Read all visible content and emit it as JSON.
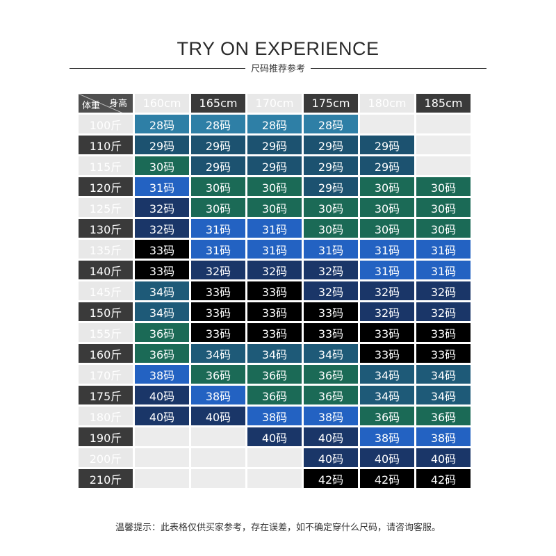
{
  "title": "TRY ON EXPERIENCE",
  "subtitle": "尺码推荐参考",
  "corner": {
    "height_label": "身高",
    "weight_label": "体重"
  },
  "heights": [
    "160cm",
    "165cm",
    "170cm",
    "175cm",
    "180cm",
    "185cm"
  ],
  "rows": [
    {
      "weight": "100斤",
      "sizes": [
        "28码",
        "28码",
        "28码",
        "28码",
        "",
        ""
      ]
    },
    {
      "weight": "110斤",
      "sizes": [
        "29码",
        "29码",
        "29码",
        "29码",
        "29码",
        ""
      ]
    },
    {
      "weight": "115斤",
      "sizes": [
        "30码",
        "29码",
        "29码",
        "29码",
        "29码",
        ""
      ]
    },
    {
      "weight": "120斤",
      "sizes": [
        "31码",
        "30码",
        "30码",
        "29码",
        "30码",
        "30码"
      ]
    },
    {
      "weight": "125斤",
      "sizes": [
        "32码",
        "30码",
        "30码",
        "30码",
        "30码",
        "30码"
      ]
    },
    {
      "weight": "130斤",
      "sizes": [
        "32码",
        "31码",
        "31码",
        "30码",
        "30码",
        "30码"
      ]
    },
    {
      "weight": "135斤",
      "sizes": [
        "33码",
        "31码",
        "31码",
        "31码",
        "31码",
        "31码"
      ]
    },
    {
      "weight": "140斤",
      "sizes": [
        "33码",
        "32码",
        "32码",
        "32码",
        "31码",
        "31码"
      ]
    },
    {
      "weight": "145斤",
      "sizes": [
        "34码",
        "33码",
        "33码",
        "32码",
        "32码",
        "32码"
      ]
    },
    {
      "weight": "150斤",
      "sizes": [
        "34码",
        "33码",
        "33码",
        "33码",
        "32码",
        "32码"
      ]
    },
    {
      "weight": "155斤",
      "sizes": [
        "36码",
        "33码",
        "33码",
        "33码",
        "33码",
        "33码"
      ]
    },
    {
      "weight": "160斤",
      "sizes": [
        "36码",
        "34码",
        "34码",
        "34码",
        "33码",
        "33码"
      ]
    },
    {
      "weight": "170斤",
      "sizes": [
        "38码",
        "36码",
        "36码",
        "36码",
        "34码",
        "34码"
      ]
    },
    {
      "weight": "175斤",
      "sizes": [
        "40码",
        "38码",
        "36码",
        "36码",
        "34码",
        "34码"
      ]
    },
    {
      "weight": "180斤",
      "sizes": [
        "40码",
        "40码",
        "38码",
        "38码",
        "36码",
        "36码"
      ]
    },
    {
      "weight": "190斤",
      "sizes": [
        "",
        "",
        "40码",
        "40码",
        "38码",
        "38码"
      ]
    },
    {
      "weight": "200斤",
      "sizes": [
        "",
        "",
        "",
        "40码",
        "40码",
        "40码"
      ]
    },
    {
      "weight": "210斤",
      "sizes": [
        "",
        "",
        "",
        "42码",
        "42码",
        "42码"
      ]
    }
  ],
  "size_colors": {
    "28码": "#2e7fa6",
    "29码": "#1c5270",
    "30码": "#1b6a56",
    "31码": "#2362c2",
    "32码": "#1a3668",
    "33码": "#000000",
    "34码": "#1e5a78",
    "36码": "#1b6a56",
    "38码": "#2362c2",
    "40码": "#1a3668",
    "42码": "#000000"
  },
  "footer": "温馨提示：此表格仅供买家参考，存在误差，如不确定穿什么尺码，请咨询客服。"
}
